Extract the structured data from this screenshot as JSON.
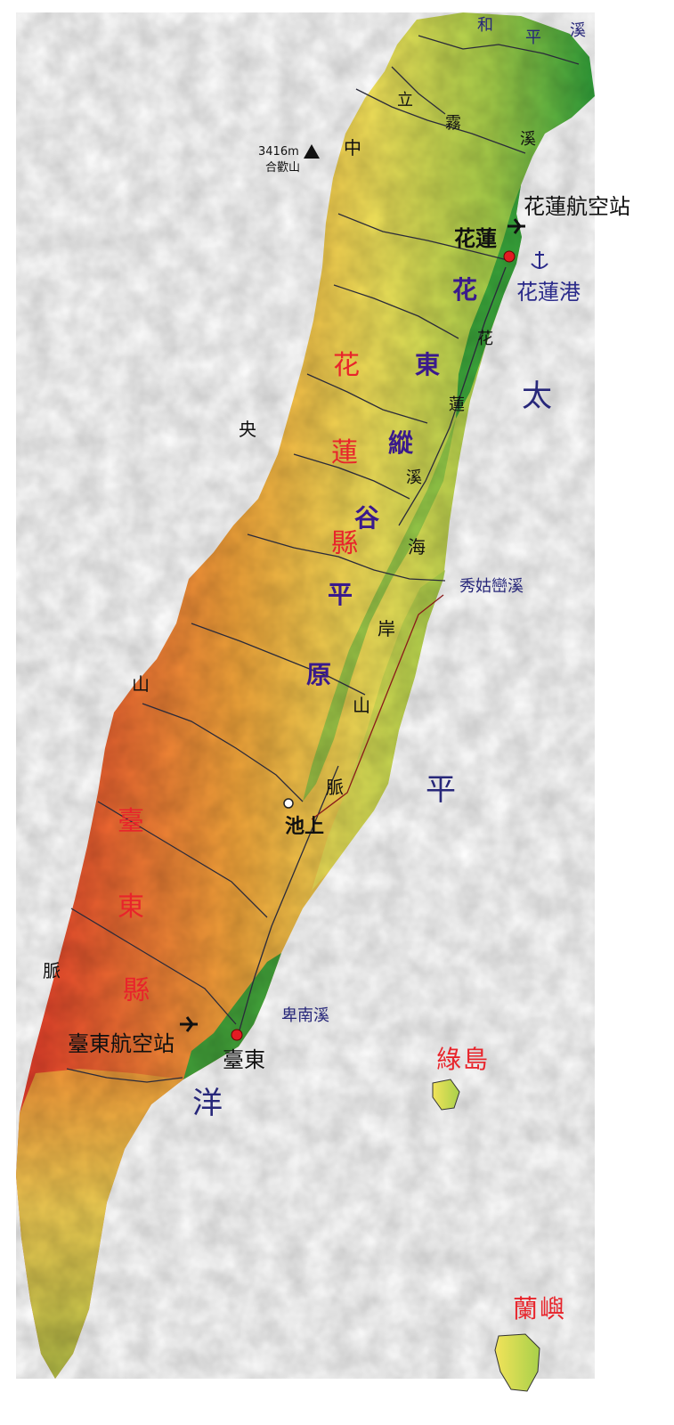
{
  "colors": {
    "low": "#2fa23a",
    "mid_low": "#a8d04a",
    "mid": "#f2e35a",
    "mid_high": "#f3a53a",
    "high": "#e8392a",
    "river": "#2a2a3a",
    "city_dot": "#e21b23",
    "county_text": "#e8242b",
    "valley_text": "#3a1a8c",
    "ocean_text": "#27277a"
  },
  "icons": {
    "airport": "airplane-icon",
    "port": "anchor-icon",
    "peak": "triangle-peak-icon",
    "city": "red-dot-icon",
    "town": "hollow-dot-icon"
  },
  "labels": {
    "heping_river": [
      "和",
      "平",
      "溪"
    ],
    "liwu_river": [
      "立",
      "霧",
      "溪"
    ],
    "central_range": [
      "中",
      "央",
      "山",
      "脈"
    ],
    "peak_height": "3416m",
    "peak_name": "合歡山",
    "hualien_airport": "花蓮航空站",
    "hualien_city": "花蓮",
    "hualien_port": "花蓮港",
    "hualien_county": [
      "花",
      "蓮",
      "縣"
    ],
    "taitung_county": [
      "臺",
      "東",
      "縣"
    ],
    "valley": [
      "花",
      "東",
      "縱",
      "谷",
      "平",
      "原"
    ],
    "hualien_river": [
      "花",
      "蓮",
      "溪"
    ],
    "coastal_range": [
      "海",
      "岸",
      "山",
      "脈"
    ],
    "ocean": [
      "太",
      "平",
      "洋"
    ],
    "xiuguluan_river": "秀姑巒溪",
    "chishang": "池上",
    "beinan_river": "卑南溪",
    "taitung_airport": "臺東航空站",
    "taitung_city": "臺東",
    "green_island": "綠島",
    "orchid_island": "蘭嶼"
  }
}
